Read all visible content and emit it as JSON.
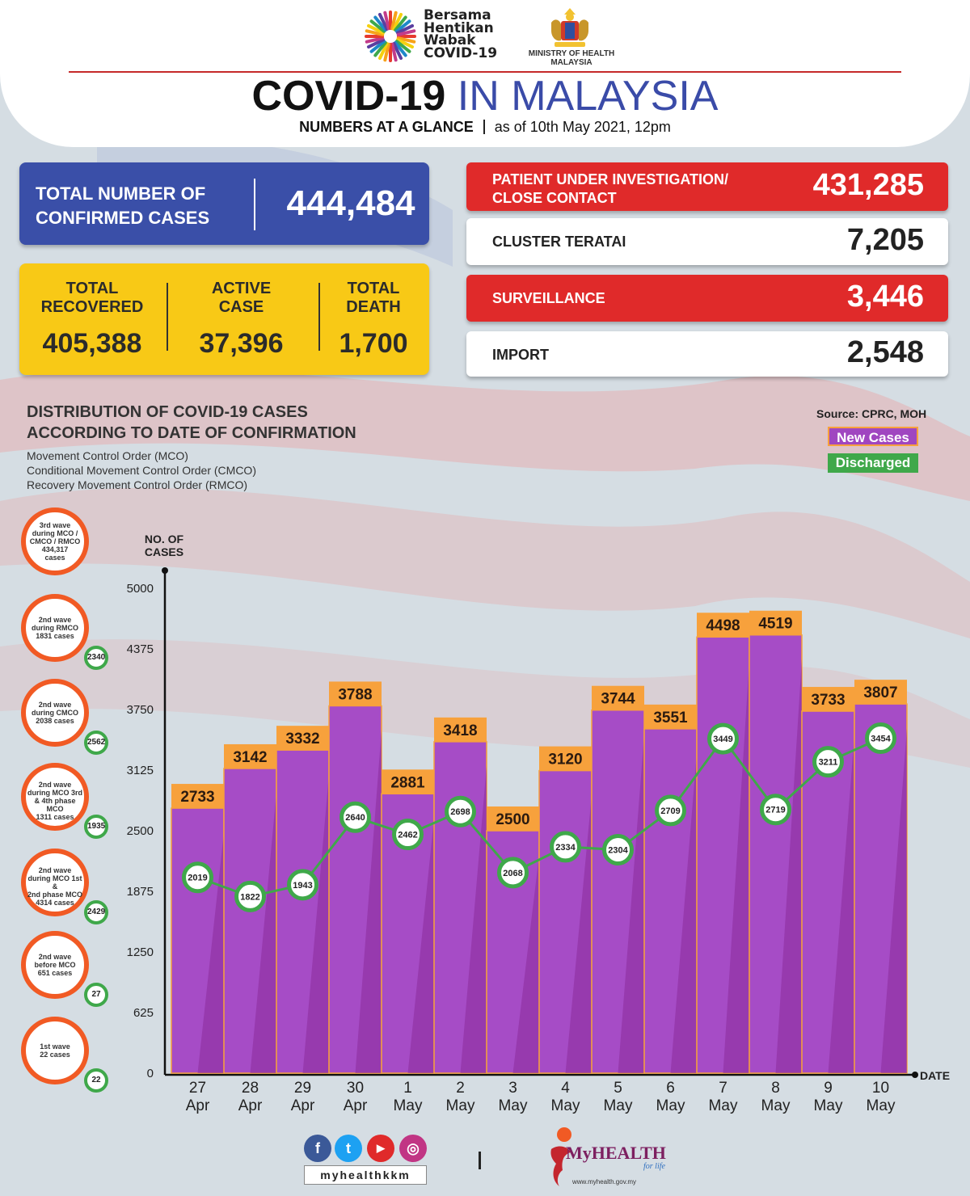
{
  "header": {
    "logo_lines": [
      "Bersama",
      "Hentikan",
      "Wabak",
      "COVID-19"
    ],
    "ministry_lines": [
      "MINISTRY OF HEALTH",
      "MALAYSIA"
    ],
    "title_part1": "COVID-19",
    "title_part2": "IN MALAYSIA",
    "subtitle_bold": "NUMBERS AT A GLANCE",
    "subtitle_date": "as of 10th May 2021, 12pm"
  },
  "confirmed": {
    "label_line1": "TOTAL NUMBER OF",
    "label_line2": "CONFIRMED CASES",
    "value": "444,484"
  },
  "summary": [
    {
      "label_line1": "TOTAL",
      "label_line2": "RECOVERED",
      "value": "405,388"
    },
    {
      "label_line1": "ACTIVE",
      "label_line2": "CASE",
      "value": "37,396"
    },
    {
      "label_line1": "TOTAL",
      "label_line2": "DEATH",
      "value": "1,700"
    }
  ],
  "stats": [
    {
      "label_line1": "PATIENT UNDER INVESTIGATION/",
      "label_line2": "CLOSE CONTACT",
      "value": "431,285",
      "style": "red"
    },
    {
      "label_line1": "CLUSTER TERATAI",
      "label_line2": "",
      "value": "7,205",
      "style": "white"
    },
    {
      "label_line1": "SURVEILLANCE",
      "label_line2": "",
      "value": "3,446",
      "style": "red"
    },
    {
      "label_line1": "IMPORT",
      "label_line2": "",
      "value": "2,548",
      "style": "white"
    }
  ],
  "distribution": {
    "title_line1": "DISTRIBUTION OF COVID-19 CASES",
    "title_line2": "ACCORDING TO DATE OF CONFIRMATION",
    "sub_lines": [
      "Movement Control Order (MCO)",
      "Conditional Movement Control Order (CMCO)",
      "Recovery Movement Control Order (RMCO)"
    ],
    "source": "Source: CPRC, MOH",
    "legend_new": "New Cases",
    "legend_discharged": "Discharged"
  },
  "waves": [
    {
      "lines": [
        "3rd wave",
        "during MCO /",
        "CMCO / RMCO",
        "434,317",
        "cases"
      ],
      "badge": ""
    },
    {
      "lines": [
        "2nd wave",
        "during RMCO",
        "1831 cases"
      ],
      "badge": "2340"
    },
    {
      "lines": [
        "2nd wave",
        "during CMCO",
        "2038 cases"
      ],
      "badge": "2562"
    },
    {
      "lines": [
        "2nd wave",
        "during MCO 3rd",
        "& 4th phase MCO",
        "1311 cases"
      ],
      "badge": "1935"
    },
    {
      "lines": [
        "2nd wave",
        "during MCO 1st &",
        "2nd phase MCO",
        "4314 cases"
      ],
      "badge": "2429"
    },
    {
      "lines": [
        "2nd wave",
        "before MCO",
        "651 cases"
      ],
      "badge": "27"
    },
    {
      "lines": [
        "1st wave",
        "22 cases"
      ],
      "badge": "22"
    }
  ],
  "chart_data": {
    "type": "bar",
    "ylabel": "NO. OF CASES",
    "xlabel": "DATE",
    "ylim": [
      0,
      5000
    ],
    "yticks": [
      0,
      625,
      1250,
      1875,
      2500,
      3125,
      3750,
      4375,
      5000
    ],
    "categories": [
      [
        "27",
        "Apr"
      ],
      [
        "28",
        "Apr"
      ],
      [
        "29",
        "Apr"
      ],
      [
        "30",
        "Apr"
      ],
      [
        "1",
        "May"
      ],
      [
        "2",
        "May"
      ],
      [
        "3",
        "May"
      ],
      [
        "4",
        "May"
      ],
      [
        "5",
        "May"
      ],
      [
        "6",
        "May"
      ],
      [
        "7",
        "May"
      ],
      [
        "8",
        "May"
      ],
      [
        "9",
        "May"
      ],
      [
        "10",
        "May"
      ]
    ],
    "series": [
      {
        "name": "New Cases",
        "values": [
          2733,
          3142,
          3332,
          3788,
          2881,
          3418,
          2500,
          3120,
          3744,
          3551,
          4498,
          4519,
          3733,
          3807
        ],
        "color": "#a046c0"
      },
      {
        "name": "Discharged",
        "values": [
          2019,
          1822,
          1943,
          2640,
          2462,
          2698,
          2068,
          2334,
          2304,
          2709,
          3449,
          2719,
          3211,
          3454
        ],
        "color": "#3fa84a"
      }
    ],
    "legend": "top-right"
  },
  "footer": {
    "social_icons": [
      "facebook-icon",
      "twitter-icon",
      "youtube-icon",
      "instagram-icon"
    ],
    "social_glyphs": [
      "f",
      "t",
      "▶",
      "◎"
    ],
    "handle": "myhealthkkm",
    "brand": "MyHEALTH",
    "tagline": "for life",
    "url": "www.myhealth.gov.my"
  }
}
